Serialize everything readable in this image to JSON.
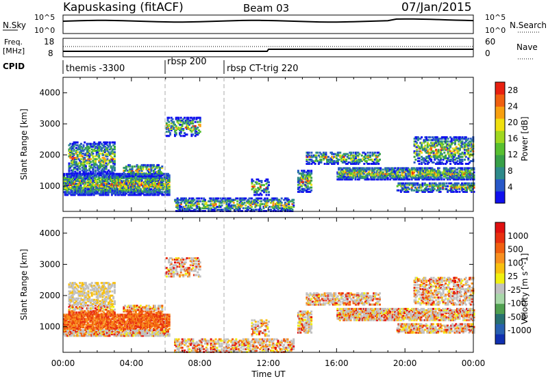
{
  "header": {
    "station": "Kapuskasing (fitACF)",
    "beam": "Beam 03",
    "date": "07/Jan/2015"
  },
  "nsky_panel": {
    "left_label": "N.Sky",
    "right_label": "N.Search",
    "left_ticks": [
      "10^5",
      "10^0"
    ],
    "right_ticks": [
      "10^5",
      "10^0"
    ]
  },
  "freq_panel": {
    "left_label_line1": "Freq.",
    "left_label_line2": "[MHz]",
    "left_ticks": [
      "18",
      "8"
    ],
    "right_label": "Nave",
    "right_ticks": [
      "60",
      "0"
    ]
  },
  "cpid_panel": {
    "label": "CPID",
    "segments": [
      {
        "name": "themis -3300",
        "start_hour": 0
      },
      {
        "name": "rbsp 200",
        "start_hour": 6
      },
      {
        "name": "rbsp CT-trig 220",
        "start_hour": 9.5
      }
    ]
  },
  "chart_data": [
    {
      "type": "heatmap",
      "ylabel": "Slant Range [km]",
      "xlim_hours": [
        0,
        24
      ],
      "ylim_km": [
        180,
        4500
      ],
      "yticks": [
        "1000",
        "2000",
        "3000",
        "4000"
      ],
      "colorbar": {
        "label": "Power [dB]",
        "ticks": [
          "4",
          "8",
          "12",
          "16",
          "20",
          "24",
          "28"
        ],
        "colors": [
          "#1010ee",
          "#2858c8",
          "#2e8a8a",
          "#38a048",
          "#58c030",
          "#a0d820",
          "#f0e010",
          "#f8a010",
          "#f06010",
          "#e82010"
        ]
      }
    },
    {
      "type": "heatmap",
      "ylabel": "Slant Range [km]",
      "xlabel": "Time UT",
      "xlim_hours": [
        0,
        24
      ],
      "ylim_km": [
        180,
        4500
      ],
      "yticks": [
        "1000",
        "2000",
        "3000",
        "4000"
      ],
      "xticks": [
        "00:00",
        "04:00",
        "08:00",
        "12:00",
        "16:00",
        "20:00",
        "00:00"
      ],
      "colorbar": {
        "label": "Velocity [m s^-1]",
        "ticks": [
          "1000",
          "500",
          "100",
          "25",
          "-25",
          "-100",
          "-500",
          "-1000"
        ],
        "colors": [
          "#1030b0",
          "#2860b0",
          "#287070",
          "#50a050",
          "#a8d8a8",
          "#c0c0c0",
          "#f0f010",
          "#f8c010",
          "#f89020",
          "#f06010",
          "#e83010",
          "#e01010"
        ]
      }
    }
  ]
}
